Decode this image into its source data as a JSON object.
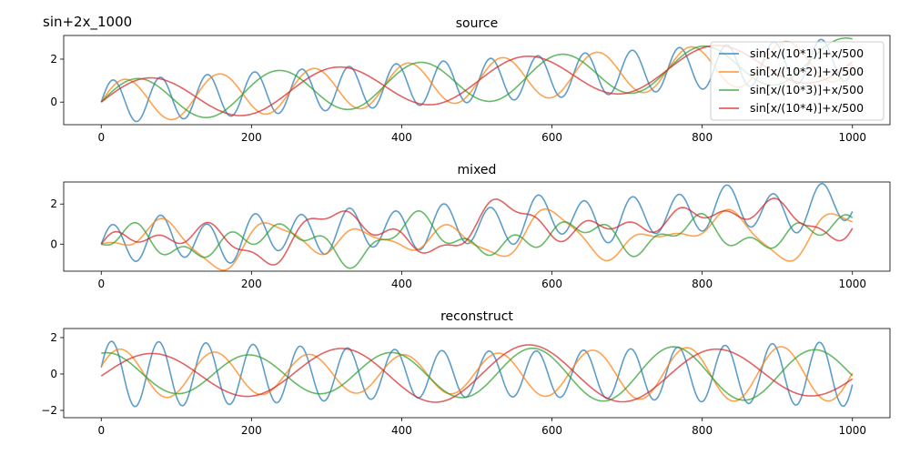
{
  "figure": {
    "suptitle": "sin+2x_1000"
  },
  "colors": [
    "#1f77b4",
    "#ff7f0e",
    "#2ca02c",
    "#d62728"
  ],
  "chart_data": [
    {
      "type": "line",
      "title": "source",
      "xlim": [
        -50,
        1050
      ],
      "ylim": [
        -1.05,
        3.1
      ],
      "xticks": [
        0,
        200,
        400,
        600,
        800,
        1000
      ],
      "yticks": [
        0,
        2
      ],
      "legend": "upper-right",
      "series": [
        {
          "name": "sin[x/(10*1)]+x/500",
          "formula": "sin(x/10)+x/500"
        },
        {
          "name": "sin[x/(10*2)]+x/500",
          "formula": "sin(x/20)+x/500"
        },
        {
          "name": "sin[x/(10*3)]+x/500",
          "formula": "sin(x/30)+x/500"
        },
        {
          "name": "sin[x/(10*4)]+x/500",
          "formula": "sin(x/40)+x/500"
        }
      ]
    },
    {
      "type": "line",
      "title": "mixed",
      "xlim": [
        -50,
        1050
      ],
      "ylim": [
        -1.35,
        3.1
      ],
      "xticks": [
        0,
        200,
        400,
        600,
        800,
        1000
      ],
      "yticks": [
        0,
        2
      ],
      "series": [
        {
          "mix": [
            1.0,
            -0.2,
            0.1,
            0.1
          ]
        },
        {
          "mix": [
            0.2,
            -0.7,
            0.5,
            0.3
          ]
        },
        {
          "mix": [
            -0.4,
            0.3,
            0.6,
            -0.2
          ]
        },
        {
          "mix": [
            0.3,
            0.4,
            -0.5,
            0.6
          ]
        }
      ]
    },
    {
      "type": "line",
      "title": "reconstruct",
      "xlim": [
        -50,
        1050
      ],
      "ylim": [
        -2.4,
        2.5
      ],
      "xticks": [
        0,
        200,
        400,
        600,
        800,
        1000
      ],
      "yticks": [
        -2,
        0,
        2
      ],
      "series": [
        {
          "amplitude": 1.8,
          "period": 10,
          "phase": 0.2
        },
        {
          "amplitude": 1.5,
          "period": 20,
          "phase": 0.3
        },
        {
          "amplitude": 1.5,
          "period": 30,
          "phase": 1.3
        },
        {
          "amplitude": 1.6,
          "period": 40,
          "phase": -0.1
        }
      ]
    }
  ]
}
